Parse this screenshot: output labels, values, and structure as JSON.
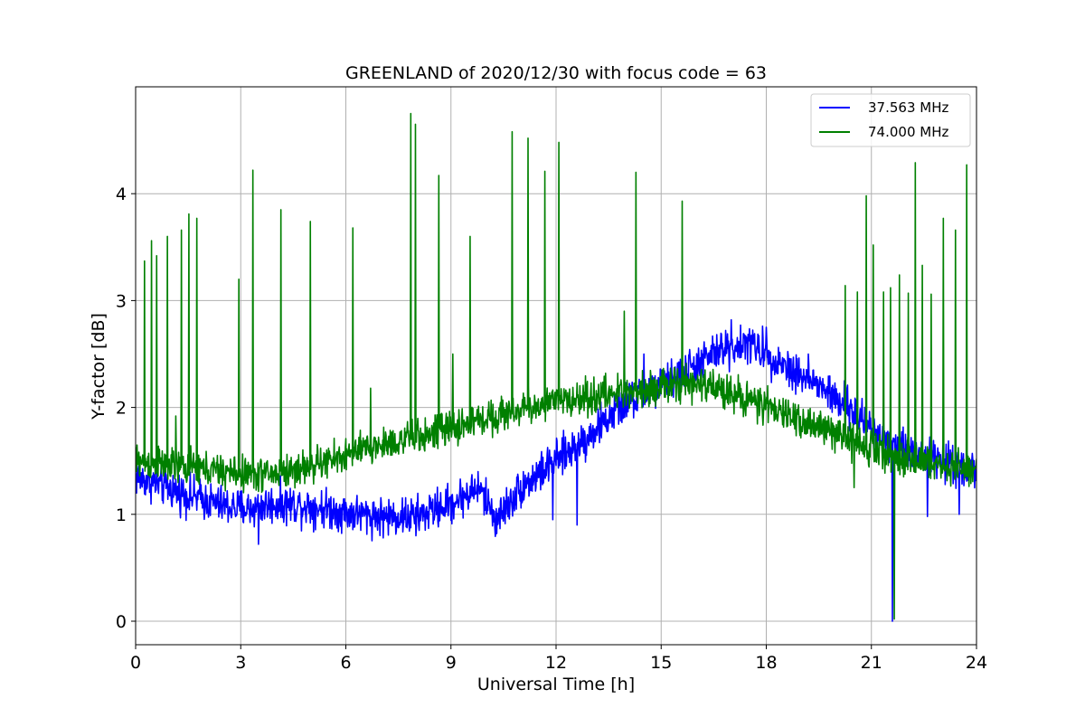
{
  "chart_data": {
    "type": "line",
    "title": "GREENLAND of 2020/12/30 with focus code = 63",
    "xlabel": "Universal Time [h]",
    "ylabel": "Y-factor [dB]",
    "xlim": [
      0,
      24
    ],
    "ylim": [
      -0.22,
      5.0
    ],
    "xticks": [
      0,
      3,
      6,
      9,
      12,
      15,
      18,
      21,
      24
    ],
    "yticks": [
      0,
      1,
      2,
      3,
      4
    ],
    "grid": true,
    "legend_position": "top-right",
    "series": [
      {
        "name": "37.563 MHz",
        "color": "#0000ff",
        "baseline": [
          [
            0,
            1.35
          ],
          [
            0.5,
            1.3
          ],
          [
            1.5,
            1.18
          ],
          [
            2.5,
            1.08
          ],
          [
            3.2,
            1.05
          ],
          [
            4,
            1.1
          ],
          [
            5,
            1.08
          ],
          [
            6,
            1.02
          ],
          [
            7,
            0.98
          ],
          [
            8,
            0.98
          ],
          [
            9,
            1.1
          ],
          [
            9.8,
            1.25
          ],
          [
            10.3,
            0.95
          ],
          [
            11,
            1.25
          ],
          [
            12,
            1.5
          ],
          [
            13,
            1.75
          ],
          [
            14,
            2.05
          ],
          [
            15,
            2.2
          ],
          [
            16,
            2.4
          ],
          [
            16.8,
            2.55
          ],
          [
            17.5,
            2.6
          ],
          [
            18.5,
            2.4
          ],
          [
            19.5,
            2.2
          ],
          [
            20.5,
            1.95
          ],
          [
            21.2,
            1.75
          ],
          [
            22,
            1.6
          ],
          [
            23,
            1.5
          ],
          [
            24,
            1.42
          ]
        ],
        "noise": 0.09,
        "spikes": [
          [
            3.5,
            0.72
          ],
          [
            8,
            0.8
          ],
          [
            10.3,
            0.82
          ],
          [
            11.9,
            0.95
          ],
          [
            12.6,
            0.9
          ],
          [
            13.1,
            1.8
          ],
          [
            14.5,
            2.5
          ],
          [
            15,
            2.35
          ],
          [
            17,
            2.82
          ],
          [
            18,
            2.75
          ],
          [
            19.2,
            2.5
          ],
          [
            21.6,
            0.0
          ],
          [
            22.6,
            0.98
          ],
          [
            23.5,
            1.0
          ]
        ]
      },
      {
        "name": "74.000 MHz",
        "color": "#008000",
        "baseline": [
          [
            0,
            1.5
          ],
          [
            1,
            1.45
          ],
          [
            2,
            1.42
          ],
          [
            3,
            1.38
          ],
          [
            4,
            1.38
          ],
          [
            5,
            1.45
          ],
          [
            6,
            1.55
          ],
          [
            7,
            1.65
          ],
          [
            8,
            1.72
          ],
          [
            9,
            1.8
          ],
          [
            10,
            1.9
          ],
          [
            11,
            1.98
          ],
          [
            12,
            2.05
          ],
          [
            13,
            2.1
          ],
          [
            14,
            2.15
          ],
          [
            15,
            2.2
          ],
          [
            16,
            2.22
          ],
          [
            17,
            2.15
          ],
          [
            18,
            2.0
          ],
          [
            19,
            1.88
          ],
          [
            20,
            1.75
          ],
          [
            21,
            1.62
          ],
          [
            22,
            1.52
          ],
          [
            23,
            1.45
          ],
          [
            24,
            1.4
          ]
        ],
        "noise": 0.08,
        "spikes": [
          [
            0.25,
            3.37
          ],
          [
            0.45,
            3.56
          ],
          [
            0.6,
            3.42
          ],
          [
            0.9,
            3.6
          ],
          [
            1.15,
            1.92
          ],
          [
            1.3,
            3.66
          ],
          [
            1.52,
            3.81
          ],
          [
            1.75,
            3.77
          ],
          [
            2.95,
            3.2
          ],
          [
            3.35,
            4.22
          ],
          [
            4.15,
            3.85
          ],
          [
            4.98,
            3.74
          ],
          [
            6.2,
            3.68
          ],
          [
            6.7,
            2.18
          ],
          [
            7.85,
            4.75
          ],
          [
            7.98,
            4.65
          ],
          [
            8.65,
            4.17
          ],
          [
            9.05,
            2.5
          ],
          [
            9.55,
            3.6
          ],
          [
            10.75,
            4.58
          ],
          [
            11.2,
            4.52
          ],
          [
            11.68,
            4.21
          ],
          [
            12.08,
            4.48
          ],
          [
            13.95,
            2.9
          ],
          [
            14.28,
            4.2
          ],
          [
            15.6,
            3.93
          ],
          [
            20.25,
            3.14
          ],
          [
            20.6,
            3.08
          ],
          [
            20.85,
            3.98
          ],
          [
            21.05,
            3.52
          ],
          [
            21.35,
            3.08
          ],
          [
            21.55,
            3.12
          ],
          [
            21.8,
            3.24
          ],
          [
            22.05,
            3.07
          ],
          [
            22.25,
            4.29
          ],
          [
            22.45,
            3.33
          ],
          [
            22.7,
            3.06
          ],
          [
            23.05,
            3.77
          ],
          [
            23.4,
            3.66
          ],
          [
            23.72,
            4.27
          ],
          [
            21.65,
            0.02
          ],
          [
            20.5,
            1.25
          ]
        ]
      }
    ]
  }
}
